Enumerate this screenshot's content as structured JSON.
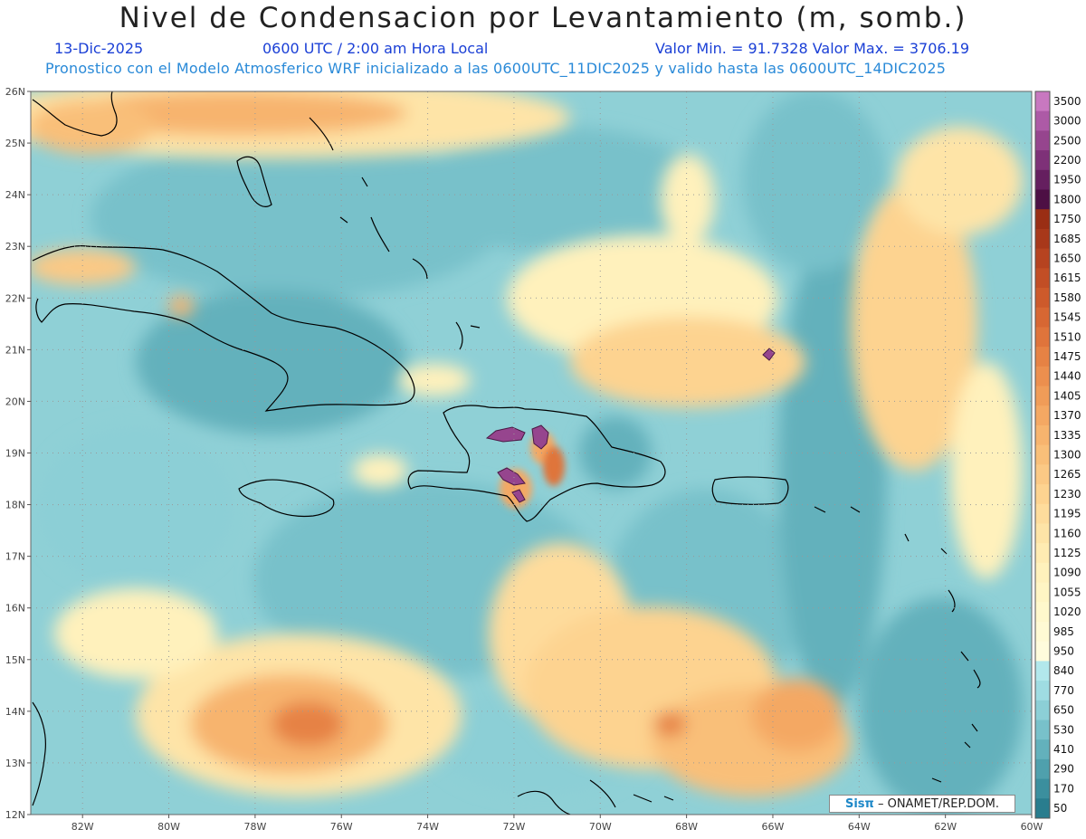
{
  "header": {
    "title": "Nivel de Condensacion por Levantamiento (m, somb.)",
    "date": "13-Dic-2025",
    "time": "0600 UTC / 2:00 am Hora Local",
    "minmax": "Valor Min. = 91.7328  Valor Max. = 3706.19",
    "model_line": "Pronostico con el Modelo Atmosferico WRF inicializado a las 0600UTC_11DIC2025 y valido hasta las  0600UTC_14DIC2025"
  },
  "map": {
    "lon_range": [
      -83.2,
      -60
    ],
    "lat_range": [
      12,
      26
    ],
    "lat_ticks": [
      "26N",
      "25N",
      "24N",
      "23N",
      "22N",
      "21N",
      "20N",
      "19N",
      "18N",
      "17N",
      "16N",
      "15N",
      "14N",
      "13N",
      "12N"
    ],
    "lon_ticks": [
      "82W",
      "80W",
      "78W",
      "76W",
      "74W",
      "72W",
      "70W",
      "68W",
      "66W",
      "64W",
      "62W",
      "60W"
    ],
    "ocean_color": "#8fd0d6",
    "credit_logo": "Sisπ",
    "credit_text": "– ONAMET/REP.DOM."
  },
  "colorbar": {
    "labels": [
      "3500",
      "3000",
      "2500",
      "2200",
      "1950",
      "1800",
      "1750",
      "1685",
      "1650",
      "1615",
      "1580",
      "1545",
      "1510",
      "1475",
      "1440",
      "1405",
      "1370",
      "1335",
      "1300",
      "1265",
      "1230",
      "1195",
      "1160",
      "1125",
      "1090",
      "1055",
      "1020",
      "985",
      "950",
      "840",
      "770",
      "650",
      "530",
      "410",
      "290",
      "170",
      "50"
    ],
    "colors": [
      "#c878c0",
      "#ad5aa6",
      "#96458e",
      "#7e3178",
      "#651f5f",
      "#4d0f44",
      "#9a2e14",
      "#a8381a",
      "#b64320",
      "#c24e25",
      "#cd5a2b",
      "#d76733",
      "#df743b",
      "#e68244",
      "#ec8f4e",
      "#f09c58",
      "#f4a863",
      "#f7b46e",
      "#f9bf79",
      "#fbc985",
      "#fdd390",
      "#fedc9c",
      "#fee4a7",
      "#ffebb2",
      "#fff1bc",
      "#fff5c4",
      "#fff8cc",
      "#fffad4",
      "#fffcdc",
      "#b2e8ec",
      "#9fdce2",
      "#8ccfd6",
      "#78c1ca",
      "#63b1bc",
      "#4fa0ad",
      "#3b8f9e",
      "#297d8e"
    ]
  }
}
